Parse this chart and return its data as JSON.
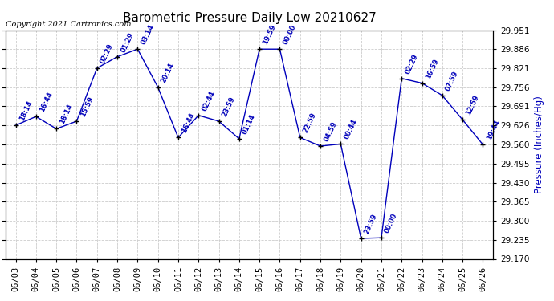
{
  "title": "Barometric Pressure Daily Low 20210627",
  "ylabel": "Pressure (Inches/Hg)",
  "copyright": "Copyright 2021 Cartronics.com",
  "x_labels": [
    "06/03",
    "06/04",
    "06/05",
    "06/06",
    "06/07",
    "06/08",
    "06/09",
    "06/10",
    "06/11",
    "06/12",
    "06/13",
    "06/14",
    "06/15",
    "06/16",
    "06/17",
    "06/18",
    "06/19",
    "06/20",
    "06/21",
    "06/22",
    "06/23",
    "06/24",
    "06/25",
    "06/26"
  ],
  "y_values": [
    29.626,
    29.656,
    29.614,
    29.64,
    29.821,
    29.86,
    29.886,
    29.756,
    29.584,
    29.66,
    29.64,
    29.58,
    29.886,
    29.886,
    29.584,
    29.555,
    29.562,
    29.24,
    29.242,
    29.786,
    29.77,
    29.728,
    29.645,
    29.56
  ],
  "time_labels": [
    "18:14",
    "16:44",
    "18:14",
    "15:59",
    "02:29",
    "01:29",
    "03:14",
    "20:14",
    "16:44",
    "02:44",
    "23:59",
    "01:14",
    "19:59",
    "00:00",
    "22:59",
    "04:59",
    "00:44",
    "23:59",
    "00:00",
    "02:29",
    "16:59",
    "07:59",
    "12:59",
    "19:44"
  ],
  "ylim_min": 29.17,
  "ylim_max": 29.951,
  "ytick_values": [
    29.17,
    29.235,
    29.3,
    29.365,
    29.43,
    29.495,
    29.56,
    29.626,
    29.691,
    29.756,
    29.821,
    29.886,
    29.951
  ],
  "line_color": "#0000bb",
  "marker_color": "#000000",
  "bg_color": "#ffffff",
  "grid_color": "#cccccc",
  "title_color": "#000000",
  "ylabel_color": "#0000bb",
  "copyright_color": "#000000",
  "annotation_color": "#0000bb",
  "fig_width": 6.9,
  "fig_height": 3.75,
  "dpi": 100
}
